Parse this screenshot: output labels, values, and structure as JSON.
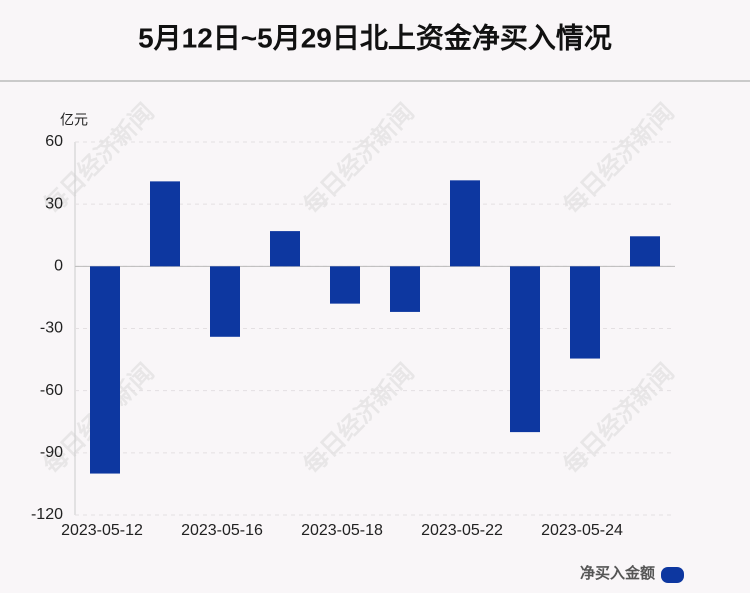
{
  "chart_data": {
    "type": "bar",
    "title": "5月12日~5月29日北上资金净买入情况",
    "y_unit": "亿元",
    "watermark": "每日经济新闻",
    "categories": [
      "2023-05-12",
      null,
      "2023-05-16",
      null,
      "2023-05-18",
      null,
      "2023-05-22",
      null,
      "2023-05-24",
      null
    ],
    "series": [
      {
        "name": "净买入金额",
        "color": "#0d37a0",
        "values": [
          -100,
          41,
          -34,
          17,
          -18,
          -22,
          41.5,
          -80,
          -44.5,
          14.5
        ]
      }
    ],
    "ylim": [
      -120,
      60
    ],
    "yticks": [
      -120,
      -90,
      -60,
      -30,
      0,
      30,
      60
    ],
    "grid": true
  }
}
